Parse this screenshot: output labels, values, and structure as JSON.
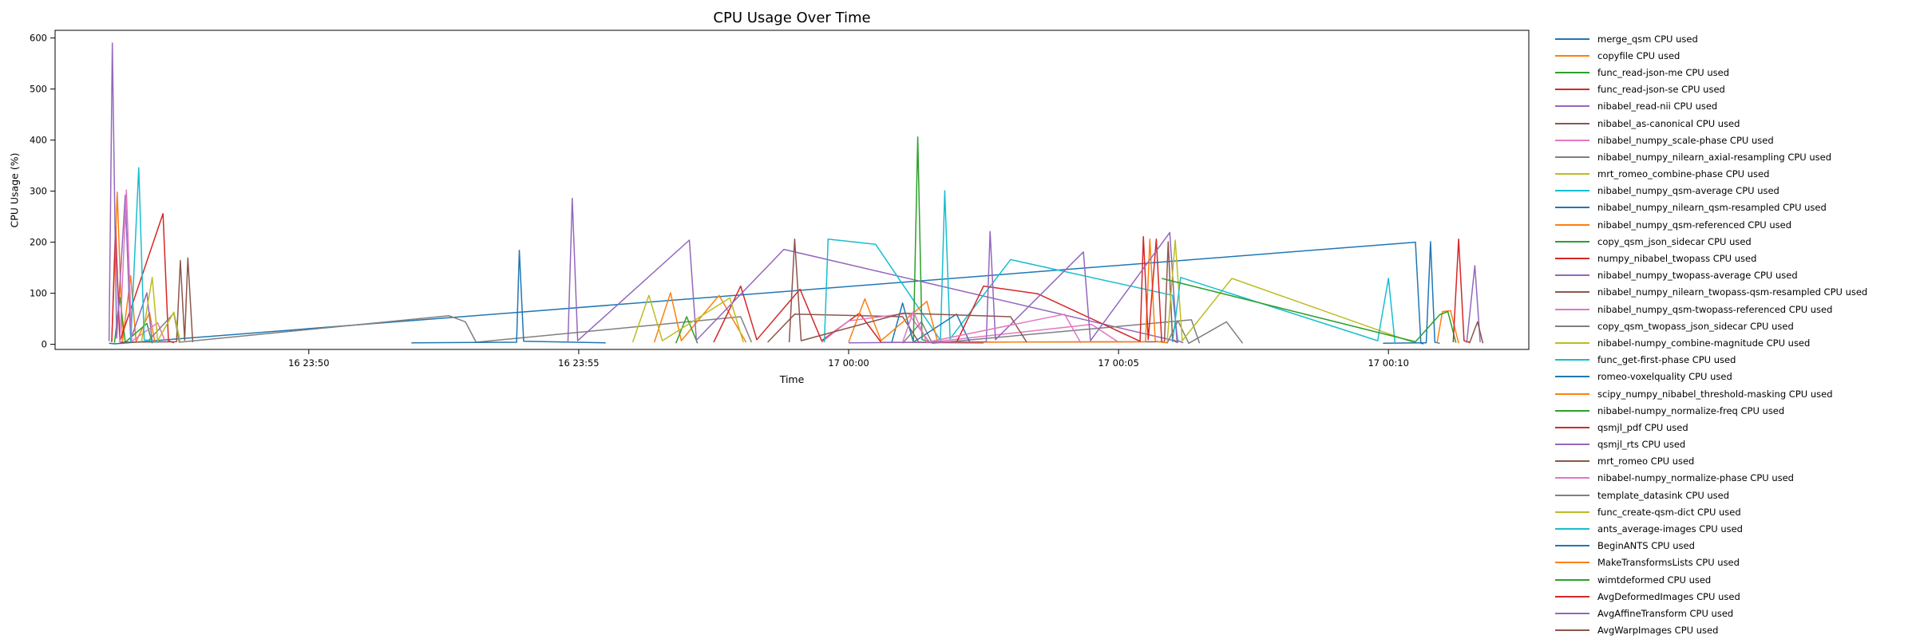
{
  "title": "CPU Usage Over Time",
  "chart_data": {
    "type": "line",
    "title": "CPU Usage Over Time",
    "xlabel": "Time",
    "ylabel": "CPU Usage (%)",
    "x_unit": "minutes since 16 23:45",
    "xlim": [
      0.3,
      27.6
    ],
    "ylim": [
      -10,
      615
    ],
    "grid": false,
    "legend_position": "right-outside",
    "yticks": [
      0,
      100,
      200,
      300,
      400,
      500,
      600
    ],
    "xticks": [
      {
        "pos": 5,
        "label": "16 23:50"
      },
      {
        "pos": 10,
        "label": "16 23:55"
      },
      {
        "pos": 15,
        "label": "17 00:00"
      },
      {
        "pos": 20,
        "label": "17 00:05"
      },
      {
        "pos": 25,
        "label": "17 00:10"
      }
    ],
    "series": [
      {
        "name": "merge_qsm CPU used",
        "color": "#1f77b4",
        "points": [
          [
            1.3,
            2
          ],
          [
            1.4,
            1
          ],
          [
            25.5,
            200
          ],
          [
            25.6,
            2
          ],
          [
            25.65,
            1
          ]
        ]
      },
      {
        "name": "copyfile CPU used",
        "color": "#ff7f0e",
        "points": [
          [
            1.35,
            4
          ],
          [
            1.45,
            298
          ],
          [
            1.55,
            6
          ],
          [
            1.7,
            134
          ],
          [
            1.8,
            5
          ],
          [
            2.05,
            62
          ],
          [
            2.15,
            3
          ]
        ]
      },
      {
        "name": "func_read-json-me CPU used",
        "color": "#2ca02c",
        "points": [
          [
            1.4,
            3
          ],
          [
            1.5,
            92
          ],
          [
            1.6,
            4
          ],
          [
            2.0,
            41
          ],
          [
            2.1,
            2
          ]
        ]
      },
      {
        "name": "func_read-json-se CPU used",
        "color": "#d62728",
        "points": [
          [
            1.35,
            5
          ],
          [
            1.42,
            231
          ],
          [
            1.5,
            6
          ],
          [
            2.3,
            256
          ],
          [
            2.4,
            7
          ],
          [
            2.5,
            3
          ]
        ]
      },
      {
        "name": "nibabel_read-nii CPU used",
        "color": "#9467bd",
        "points": [
          [
            1.3,
            6
          ],
          [
            1.36,
            590
          ],
          [
            1.44,
            12
          ],
          [
            1.6,
            292
          ],
          [
            1.7,
            9
          ],
          [
            2.0,
            101
          ],
          [
            2.1,
            4
          ]
        ]
      },
      {
        "name": "nibabel_as-canonical CPU used",
        "color": "#8c564b",
        "points": [
          [
            1.5,
            4
          ],
          [
            2.55,
            5
          ],
          [
            2.62,
            164
          ],
          [
            2.7,
            8
          ],
          [
            2.76,
            169
          ],
          [
            2.85,
            4
          ]
        ]
      },
      {
        "name": "nibabel_numpy_scale-phase CPU used",
        "color": "#e377c2",
        "points": [
          [
            1.5,
            3
          ],
          [
            1.62,
            302
          ],
          [
            1.72,
            6
          ],
          [
            2.2,
            42
          ],
          [
            2.35,
            3
          ]
        ]
      },
      {
        "name": "nibabel_numpy_nilearn_axial-resampling CPU used",
        "color": "#7f7f7f",
        "points": [
          [
            2.0,
            4
          ],
          [
            2.5,
            61
          ],
          [
            2.6,
            4
          ],
          [
            7.6,
            56
          ],
          [
            7.9,
            44
          ],
          [
            8.1,
            4
          ],
          [
            13.0,
            54
          ],
          [
            13.2,
            4
          ]
        ]
      },
      {
        "name": "mrt_romeo_combine-phase CPU used",
        "color": "#bcbd22",
        "points": [
          [
            1.9,
            5
          ],
          [
            2.1,
            131
          ],
          [
            2.2,
            7
          ],
          [
            2.5,
            63
          ],
          [
            2.62,
            4
          ]
        ]
      },
      {
        "name": "nibabel_numpy_qsm-average CPU used",
        "color": "#17becf",
        "points": [
          [
            1.7,
            4
          ],
          [
            1.85,
            346
          ],
          [
            1.95,
            9
          ],
          [
            2.2,
            4
          ]
        ]
      },
      {
        "name": "nibabel_numpy_nilearn_qsm-resampled CPU used",
        "color": "#1f77b4",
        "points": [
          [
            6.9,
            3
          ],
          [
            8.85,
            4
          ],
          [
            8.9,
            184
          ],
          [
            8.98,
            6
          ],
          [
            10.5,
            3
          ]
        ]
      },
      {
        "name": "nibabel_numpy_qsm-referenced CPU used",
        "color": "#ff7f0e",
        "points": [
          [
            11.4,
            4
          ],
          [
            11.7,
            101
          ],
          [
            11.9,
            7
          ],
          [
            12.6,
            96
          ],
          [
            12.8,
            59
          ],
          [
            13.1,
            4
          ]
        ]
      },
      {
        "name": "copy_qsm_json_sidecar CPU used",
        "color": "#2ca02c",
        "points": [
          [
            11.8,
            2
          ],
          [
            12.0,
            54
          ],
          [
            12.2,
            2
          ]
        ]
      },
      {
        "name": "numpy_nibabel_twopass CPU used",
        "color": "#d62728",
        "points": [
          [
            12.5,
            4
          ],
          [
            13.0,
            114
          ],
          [
            13.3,
            9
          ],
          [
            14.1,
            108
          ],
          [
            14.5,
            7
          ],
          [
            15.2,
            61
          ],
          [
            15.6,
            4
          ],
          [
            17.5,
            3
          ]
        ]
      },
      {
        "name": "nibabel_numpy_twopass-average CPU used",
        "color": "#9467bd",
        "points": [
          [
            9.8,
            4
          ],
          [
            9.88,
            286
          ],
          [
            9.98,
            7
          ],
          [
            12.05,
            204
          ],
          [
            12.18,
            8
          ],
          [
            13.8,
            186
          ],
          [
            21.0,
            8
          ],
          [
            21.1,
            3
          ]
        ]
      },
      {
        "name": "nibabel_numpy_nilearn_twopass-qsm-resampled CPU used",
        "color": "#8c564b",
        "points": [
          [
            13.5,
            4
          ],
          [
            14.0,
            59
          ],
          [
            16.0,
            54
          ],
          [
            16.3,
            4
          ],
          [
            20.85,
            5
          ],
          [
            20.92,
            201
          ],
          [
            21.0,
            9
          ],
          [
            21.1,
            4
          ]
        ]
      },
      {
        "name": "nibabel_numpy_qsm-twopass-referenced CPU used",
        "color": "#e377c2",
        "points": [
          [
            14.5,
            4
          ],
          [
            15.0,
            46
          ],
          [
            16.1,
            61
          ],
          [
            16.5,
            4
          ],
          [
            19.5,
            39
          ],
          [
            20.0,
            4
          ]
        ]
      },
      {
        "name": "copy_qsm_twopass_json_sidecar CPU used",
        "color": "#7f7f7f",
        "points": [
          [
            16.0,
            2
          ],
          [
            16.35,
            44
          ],
          [
            16.55,
            2
          ],
          [
            21.35,
            48
          ],
          [
            21.5,
            2
          ]
        ]
      },
      {
        "name": "nibabel-numpy_combine-magnitude CPU used",
        "color": "#bcbd22",
        "points": [
          [
            11.0,
            4
          ],
          [
            11.3,
            96
          ],
          [
            11.55,
            7
          ],
          [
            12.8,
            91
          ],
          [
            13.05,
            4
          ]
        ]
      },
      {
        "name": "func_get-first-phase CPU used",
        "color": "#17becf",
        "points": [
          [
            14.55,
            4
          ],
          [
            14.62,
            206
          ],
          [
            15.5,
            196
          ],
          [
            16.7,
            8
          ],
          [
            16.78,
            301
          ],
          [
            16.88,
            11
          ],
          [
            18.0,
            166
          ],
          [
            21.0,
            96
          ],
          [
            21.1,
            4
          ]
        ]
      },
      {
        "name": "romeo-voxelquality CPU used",
        "color": "#1f77b4",
        "points": [
          [
            15.8,
            4
          ],
          [
            16.0,
            81
          ],
          [
            16.2,
            4
          ],
          [
            17.0,
            59
          ],
          [
            17.25,
            3
          ]
        ]
      },
      {
        "name": "scipy_numpy_nibabel_threshold-masking CPU used",
        "color": "#ff7f0e",
        "points": [
          [
            15.0,
            4
          ],
          [
            15.3,
            89
          ],
          [
            15.6,
            7
          ],
          [
            16.45,
            84
          ],
          [
            16.65,
            4
          ],
          [
            20.5,
            5
          ],
          [
            20.58,
            206
          ],
          [
            20.68,
            6
          ],
          [
            20.9,
            3
          ]
        ]
      },
      {
        "name": "nibabel-numpy_normalize-freq CPU used",
        "color": "#2ca02c",
        "points": [
          [
            16.2,
            4
          ],
          [
            16.28,
            406
          ],
          [
            16.36,
            9
          ],
          [
            16.55,
            4
          ]
        ]
      },
      {
        "name": "qsmjl_pdf CPU used",
        "color": "#d62728",
        "points": [
          [
            17.0,
            4
          ],
          [
            17.5,
            114
          ],
          [
            18.5,
            99
          ],
          [
            20.4,
            6
          ],
          [
            20.46,
            211
          ],
          [
            20.55,
            9
          ],
          [
            20.7,
            206
          ],
          [
            20.8,
            4
          ]
        ]
      },
      {
        "name": "qsmjl_rts CPU used",
        "color": "#9467bd",
        "points": [
          [
            15.0,
            3
          ],
          [
            17.55,
            5
          ],
          [
            17.62,
            221
          ],
          [
            17.72,
            9
          ],
          [
            19.35,
            181
          ],
          [
            19.48,
            7
          ],
          [
            20.95,
            219
          ],
          [
            21.08,
            8
          ],
          [
            21.2,
            3
          ]
        ]
      },
      {
        "name": "mrt_romeo CPU used",
        "color": "#8c564b",
        "points": [
          [
            13.9,
            4
          ],
          [
            14.0,
            206
          ],
          [
            14.12,
            7
          ],
          [
            16.0,
            61
          ],
          [
            18.0,
            54
          ],
          [
            18.3,
            4
          ]
        ]
      },
      {
        "name": "nibabel-numpy_normalize-phase CPU used",
        "color": "#e377c2",
        "points": [
          [
            16.0,
            4
          ],
          [
            16.2,
            64
          ],
          [
            16.45,
            4
          ],
          [
            19.0,
            59
          ],
          [
            19.3,
            3
          ]
        ]
      },
      {
        "name": "template_datasink CPU used",
        "color": "#7f7f7f",
        "points": [
          [
            20.9,
            2
          ],
          [
            21.1,
            46
          ],
          [
            21.3,
            2
          ],
          [
            22.0,
            44
          ],
          [
            22.3,
            2
          ]
        ]
      },
      {
        "name": "func_create-qsm-dict CPU used",
        "color": "#bcbd22",
        "points": [
          [
            20.9,
            4
          ],
          [
            21.05,
            204
          ],
          [
            21.18,
            7
          ],
          [
            22.1,
            129
          ],
          [
            25.4,
            6
          ],
          [
            25.5,
            3
          ]
        ]
      },
      {
        "name": "ants_average-images CPU used",
        "color": "#17becf",
        "points": [
          [
            21.0,
            4
          ],
          [
            21.15,
            131
          ],
          [
            24.8,
            7
          ],
          [
            25.0,
            129
          ],
          [
            25.12,
            4
          ]
        ]
      },
      {
        "name": "BeginANTS CPU used",
        "color": "#1f77b4",
        "points": [
          [
            24.9,
            2
          ],
          [
            25.7,
            3
          ],
          [
            25.78,
            201
          ],
          [
            25.86,
            4
          ],
          [
            25.95,
            2
          ]
        ]
      },
      {
        "name": "MakeTransformsLists CPU used",
        "color": "#ff7f0e",
        "points": [
          [
            25.9,
            2
          ],
          [
            26.0,
            64
          ],
          [
            26.15,
            66
          ],
          [
            26.3,
            2
          ]
        ]
      },
      {
        "name": "wimtdeformed CPU used",
        "color": "#2ca02c",
        "points": [
          [
            20.8,
            129
          ],
          [
            25.5,
            5
          ],
          [
            25.95,
            58
          ],
          [
            26.1,
            64
          ],
          [
            26.25,
            3
          ]
        ]
      },
      {
        "name": "AvgDeformedImages CPU used",
        "color": "#d62728",
        "points": [
          [
            26.2,
            4
          ],
          [
            26.3,
            206
          ],
          [
            26.4,
            7
          ],
          [
            26.5,
            4
          ]
        ]
      },
      {
        "name": "AvgAffineTransform CPU used",
        "color": "#9467bd",
        "points": [
          [
            26.45,
            3
          ],
          [
            26.6,
            154
          ],
          [
            26.7,
            4
          ]
        ]
      },
      {
        "name": "AvgWarpImages CPU used",
        "color": "#8c564b",
        "points": [
          [
            26.5,
            2
          ],
          [
            26.65,
            44
          ],
          [
            26.75,
            2
          ]
        ]
      }
    ]
  }
}
